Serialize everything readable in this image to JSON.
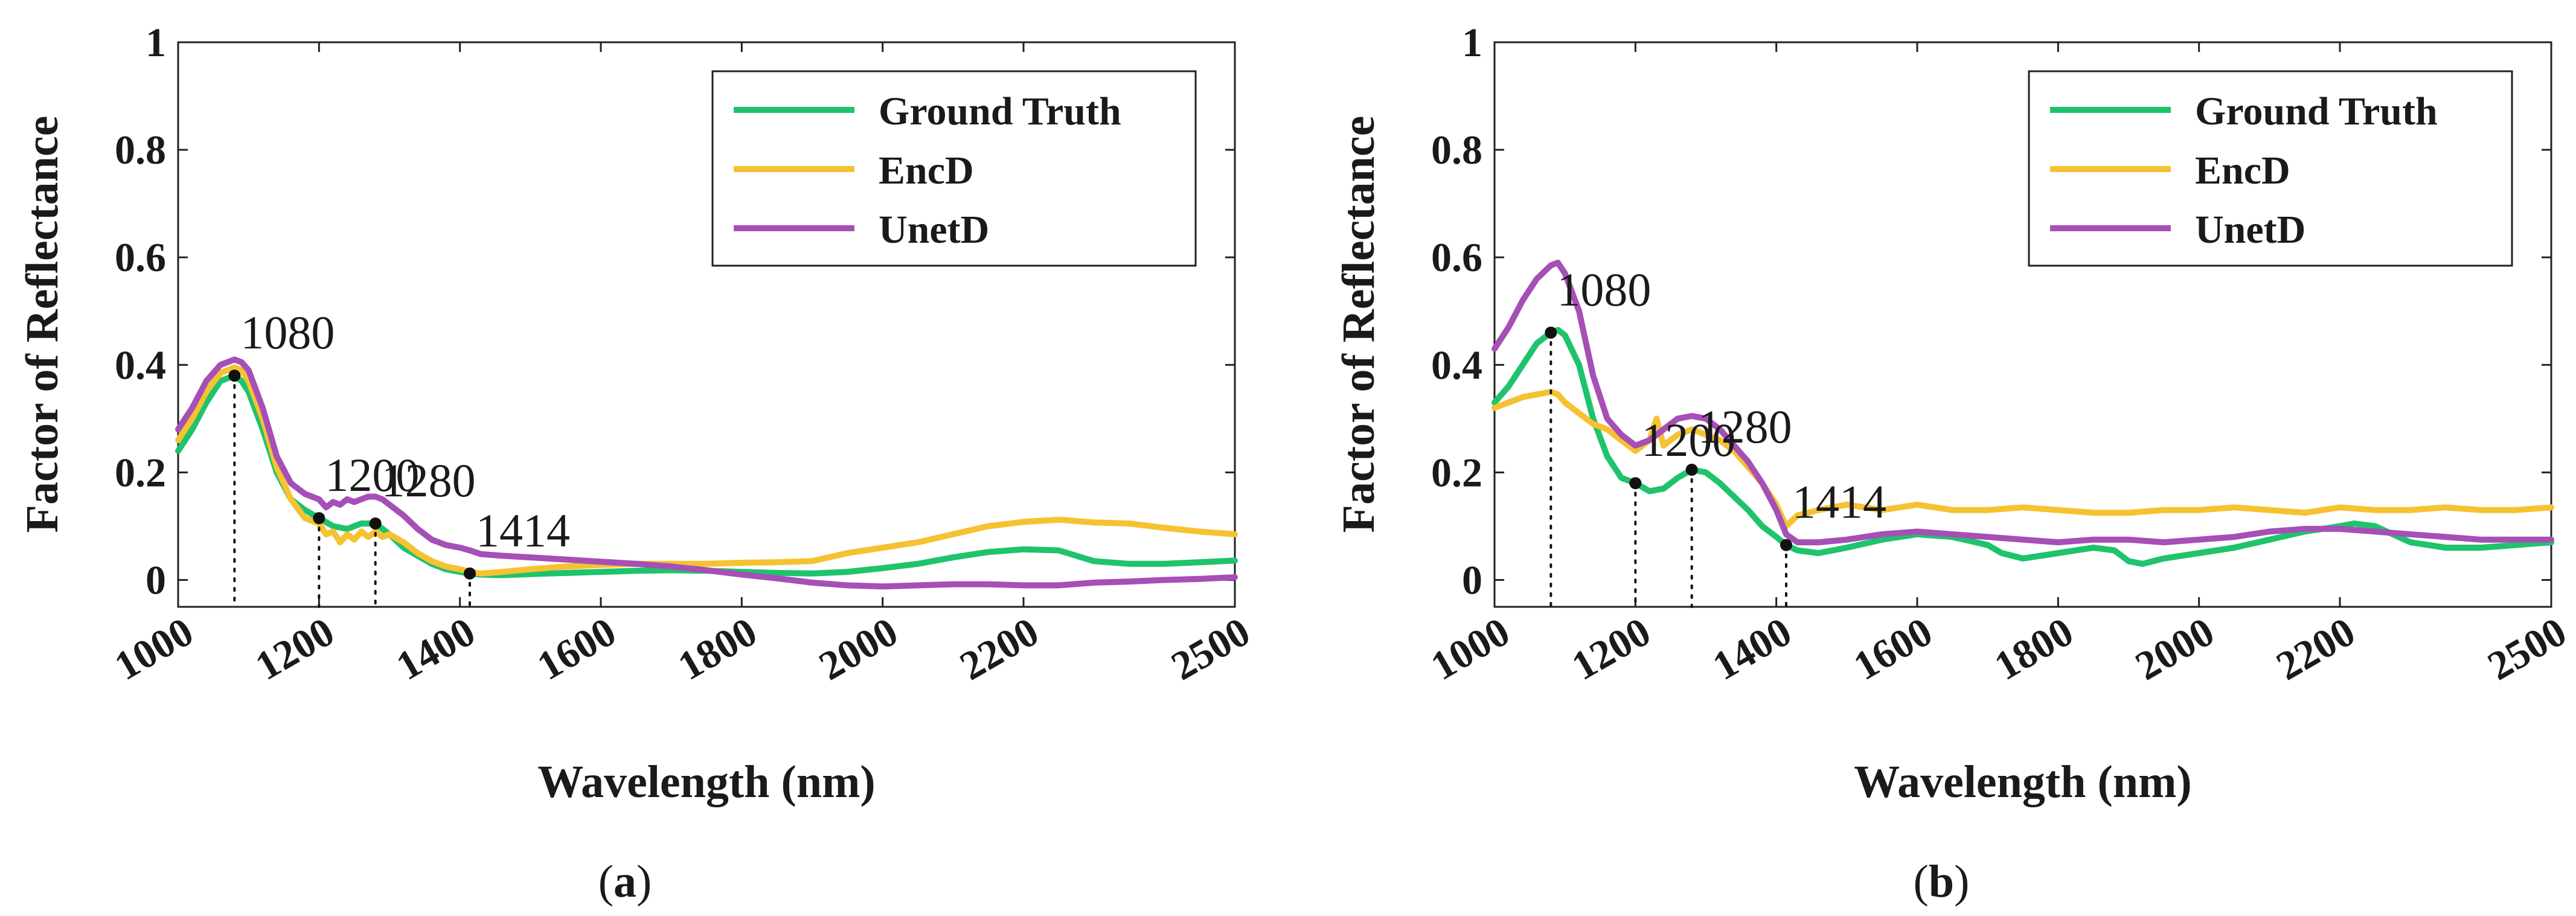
{
  "chart_data": [
    {
      "type": "line",
      "panel_label": {
        "open": "(",
        "letter": "a",
        "close": ")"
      },
      "xlabel": "Wavelength (nm)",
      "ylabel": "Factor of Reflectance",
      "xlim": [
        1000,
        2500
      ],
      "ylim": [
        -0.05,
        1
      ],
      "xticks": [
        "1000",
        "1200",
        "1400",
        "1600",
        "1800",
        "2000",
        "2200",
        "2500"
      ],
      "xtick_values": [
        1000,
        1200,
        1400,
        1600,
        1800,
        2000,
        2200,
        2500
      ],
      "yticks": [
        "0",
        "0.2",
        "0.4",
        "0.6",
        "0.8",
        "1"
      ],
      "ytick_values": [
        0,
        0.2,
        0.4,
        0.6,
        0.8,
        1
      ],
      "legend_position": "top-right",
      "series": [
        {
          "name": "Ground Truth",
          "color": "#1fc36b",
          "x": [
            1000,
            1020,
            1040,
            1060,
            1080,
            1090,
            1100,
            1120,
            1140,
            1160,
            1180,
            1200,
            1220,
            1240,
            1260,
            1280,
            1300,
            1320,
            1340,
            1360,
            1380,
            1400,
            1414,
            1430,
            1460,
            1500,
            1550,
            1600,
            1650,
            1700,
            1750,
            1800,
            1850,
            1900,
            1950,
            2000,
            2050,
            2100,
            2150,
            2200,
            2250,
            2300,
            2350,
            2400,
            2450,
            2500
          ],
          "y": [
            0.24,
            0.28,
            0.33,
            0.37,
            0.38,
            0.37,
            0.35,
            0.28,
            0.2,
            0.15,
            0.13,
            0.115,
            0.1,
            0.095,
            0.105,
            0.105,
            0.085,
            0.06,
            0.045,
            0.03,
            0.02,
            0.015,
            0.012,
            0.01,
            0.009,
            0.011,
            0.013,
            0.015,
            0.017,
            0.018,
            0.017,
            0.015,
            0.013,
            0.012,
            0.015,
            0.022,
            0.03,
            0.042,
            0.052,
            0.057,
            0.055,
            0.035,
            0.03,
            0.03,
            0.033,
            0.036
          ]
        },
        {
          "name": "EncD",
          "color": "#f5c231",
          "x": [
            1000,
            1020,
            1040,
            1060,
            1080,
            1090,
            1100,
            1120,
            1140,
            1160,
            1180,
            1200,
            1210,
            1220,
            1230,
            1240,
            1250,
            1260,
            1270,
            1280,
            1290,
            1300,
            1320,
            1340,
            1360,
            1380,
            1400,
            1414,
            1430,
            1460,
            1500,
            1550,
            1600,
            1650,
            1700,
            1750,
            1800,
            1850,
            1900,
            1950,
            2000,
            2050,
            2100,
            2150,
            2200,
            2250,
            2300,
            2350,
            2400,
            2450,
            2500
          ],
          "y": [
            0.26,
            0.3,
            0.35,
            0.385,
            0.395,
            0.39,
            0.37,
            0.3,
            0.21,
            0.15,
            0.115,
            0.105,
            0.085,
            0.09,
            0.07,
            0.085,
            0.075,
            0.09,
            0.08,
            0.09,
            0.08,
            0.085,
            0.07,
            0.05,
            0.035,
            0.025,
            0.02,
            0.015,
            0.012,
            0.015,
            0.02,
            0.025,
            0.028,
            0.03,
            0.03,
            0.03,
            0.032,
            0.033,
            0.035,
            0.05,
            0.06,
            0.07,
            0.085,
            0.1,
            0.108,
            0.112,
            0.107,
            0.105,
            0.097,
            0.09,
            0.085
          ]
        },
        {
          "name": "UnetD",
          "color": "#a64fb6",
          "x": [
            1000,
            1020,
            1040,
            1060,
            1080,
            1090,
            1100,
            1120,
            1140,
            1160,
            1180,
            1200,
            1210,
            1220,
            1230,
            1240,
            1250,
            1260,
            1270,
            1280,
            1290,
            1300,
            1320,
            1340,
            1360,
            1380,
            1400,
            1414,
            1430,
            1460,
            1500,
            1550,
            1600,
            1650,
            1700,
            1750,
            1800,
            1850,
            1900,
            1950,
            2000,
            2050,
            2100,
            2150,
            2200,
            2250,
            2300,
            2350,
            2400,
            2450,
            2500
          ],
          "y": [
            0.28,
            0.32,
            0.37,
            0.4,
            0.41,
            0.405,
            0.39,
            0.32,
            0.23,
            0.18,
            0.16,
            0.15,
            0.135,
            0.145,
            0.14,
            0.15,
            0.145,
            0.15,
            0.155,
            0.155,
            0.15,
            0.14,
            0.12,
            0.095,
            0.075,
            0.065,
            0.06,
            0.055,
            0.048,
            0.045,
            0.042,
            0.038,
            0.034,
            0.03,
            0.025,
            0.018,
            0.01,
            0.003,
            -0.005,
            -0.01,
            -0.012,
            -0.01,
            -0.008,
            -0.008,
            -0.01,
            -0.01,
            -0.005,
            -0.003,
            0.0,
            0.002,
            0.005
          ]
        }
      ],
      "markers": [
        {
          "x": 1080,
          "y": 0.38,
          "label": "1080"
        },
        {
          "x": 1200,
          "y": 0.115,
          "label": "1200"
        },
        {
          "x": 1280,
          "y": 0.105,
          "label": "1280"
        },
        {
          "x": 1414,
          "y": 0.012,
          "label": "1414"
        }
      ]
    },
    {
      "type": "line",
      "panel_label": {
        "open": "(",
        "letter": "b",
        "close": ")"
      },
      "xlabel": "Wavelength (nm)",
      "ylabel": "Factor of Reflectance",
      "xlim": [
        1000,
        2500
      ],
      "ylim": [
        -0.05,
        1
      ],
      "xticks": [
        "1000",
        "1200",
        "1400",
        "1600",
        "1800",
        "2000",
        "2200",
        "2500"
      ],
      "xtick_values": [
        1000,
        1200,
        1400,
        1600,
        1800,
        2000,
        2200,
        2500
      ],
      "yticks": [
        "0",
        "0.2",
        "0.4",
        "0.6",
        "0.8",
        "1"
      ],
      "ytick_values": [
        0,
        0.2,
        0.4,
        0.6,
        0.8,
        1
      ],
      "legend_position": "top-right",
      "series": [
        {
          "name": "Ground Truth",
          "color": "#1fc36b",
          "x": [
            1000,
            1020,
            1040,
            1060,
            1080,
            1090,
            1100,
            1120,
            1140,
            1160,
            1180,
            1200,
            1220,
            1240,
            1260,
            1280,
            1300,
            1320,
            1340,
            1360,
            1380,
            1400,
            1414,
            1430,
            1460,
            1500,
            1550,
            1600,
            1650,
            1700,
            1720,
            1750,
            1800,
            1850,
            1880,
            1900,
            1920,
            1950,
            2000,
            2050,
            2100,
            2150,
            2200,
            2220,
            2250,
            2300,
            2350,
            2400,
            2450,
            2500
          ],
          "y": [
            0.33,
            0.36,
            0.4,
            0.44,
            0.46,
            0.465,
            0.455,
            0.4,
            0.3,
            0.23,
            0.19,
            0.18,
            0.165,
            0.17,
            0.19,
            0.205,
            0.2,
            0.18,
            0.155,
            0.13,
            0.1,
            0.08,
            0.065,
            0.055,
            0.05,
            0.06,
            0.075,
            0.085,
            0.08,
            0.065,
            0.05,
            0.04,
            0.05,
            0.06,
            0.055,
            0.035,
            0.03,
            0.04,
            0.05,
            0.06,
            0.075,
            0.09,
            0.1,
            0.105,
            0.1,
            0.07,
            0.06,
            0.06,
            0.065,
            0.07
          ]
        },
        {
          "name": "EncD",
          "color": "#f5c231",
          "x": [
            1000,
            1020,
            1040,
            1060,
            1080,
            1090,
            1100,
            1120,
            1140,
            1160,
            1180,
            1200,
            1220,
            1230,
            1240,
            1260,
            1280,
            1300,
            1320,
            1340,
            1360,
            1380,
            1400,
            1414,
            1430,
            1460,
            1500,
            1550,
            1600,
            1650,
            1700,
            1750,
            1800,
            1850,
            1900,
            1950,
            2000,
            2050,
            2100,
            2150,
            2200,
            2250,
            2300,
            2350,
            2400,
            2450,
            2500
          ],
          "y": [
            0.32,
            0.33,
            0.34,
            0.345,
            0.35,
            0.345,
            0.33,
            0.31,
            0.29,
            0.28,
            0.26,
            0.24,
            0.26,
            0.3,
            0.25,
            0.27,
            0.28,
            0.27,
            0.26,
            0.24,
            0.21,
            0.18,
            0.14,
            0.1,
            0.12,
            0.13,
            0.14,
            0.13,
            0.14,
            0.13,
            0.13,
            0.135,
            0.13,
            0.125,
            0.125,
            0.13,
            0.13,
            0.135,
            0.13,
            0.125,
            0.135,
            0.13,
            0.13,
            0.135,
            0.13,
            0.13,
            0.135
          ]
        },
        {
          "name": "UnetD",
          "color": "#a64fb6",
          "x": [
            1000,
            1020,
            1040,
            1060,
            1080,
            1090,
            1100,
            1120,
            1140,
            1160,
            1180,
            1200,
            1220,
            1240,
            1260,
            1280,
            1300,
            1320,
            1340,
            1360,
            1380,
            1400,
            1414,
            1430,
            1460,
            1500,
            1550,
            1600,
            1650,
            1700,
            1750,
            1800,
            1850,
            1900,
            1950,
            2000,
            2050,
            2100,
            2150,
            2200,
            2250,
            2300,
            2350,
            2400,
            2450,
            2500
          ],
          "y": [
            0.43,
            0.47,
            0.52,
            0.56,
            0.585,
            0.59,
            0.57,
            0.5,
            0.38,
            0.3,
            0.27,
            0.25,
            0.26,
            0.28,
            0.3,
            0.305,
            0.3,
            0.28,
            0.25,
            0.22,
            0.18,
            0.13,
            0.085,
            0.07,
            0.07,
            0.075,
            0.085,
            0.09,
            0.085,
            0.08,
            0.075,
            0.07,
            0.075,
            0.075,
            0.07,
            0.075,
            0.08,
            0.09,
            0.095,
            0.095,
            0.09,
            0.085,
            0.08,
            0.075,
            0.075,
            0.075
          ]
        }
      ],
      "markers": [
        {
          "x": 1080,
          "y": 0.46,
          "label": "1080"
        },
        {
          "x": 1200,
          "y": 0.18,
          "label": "1200"
        },
        {
          "x": 1280,
          "y": 0.205,
          "label": "1280"
        },
        {
          "x": 1414,
          "y": 0.065,
          "label": "1414"
        }
      ]
    }
  ]
}
